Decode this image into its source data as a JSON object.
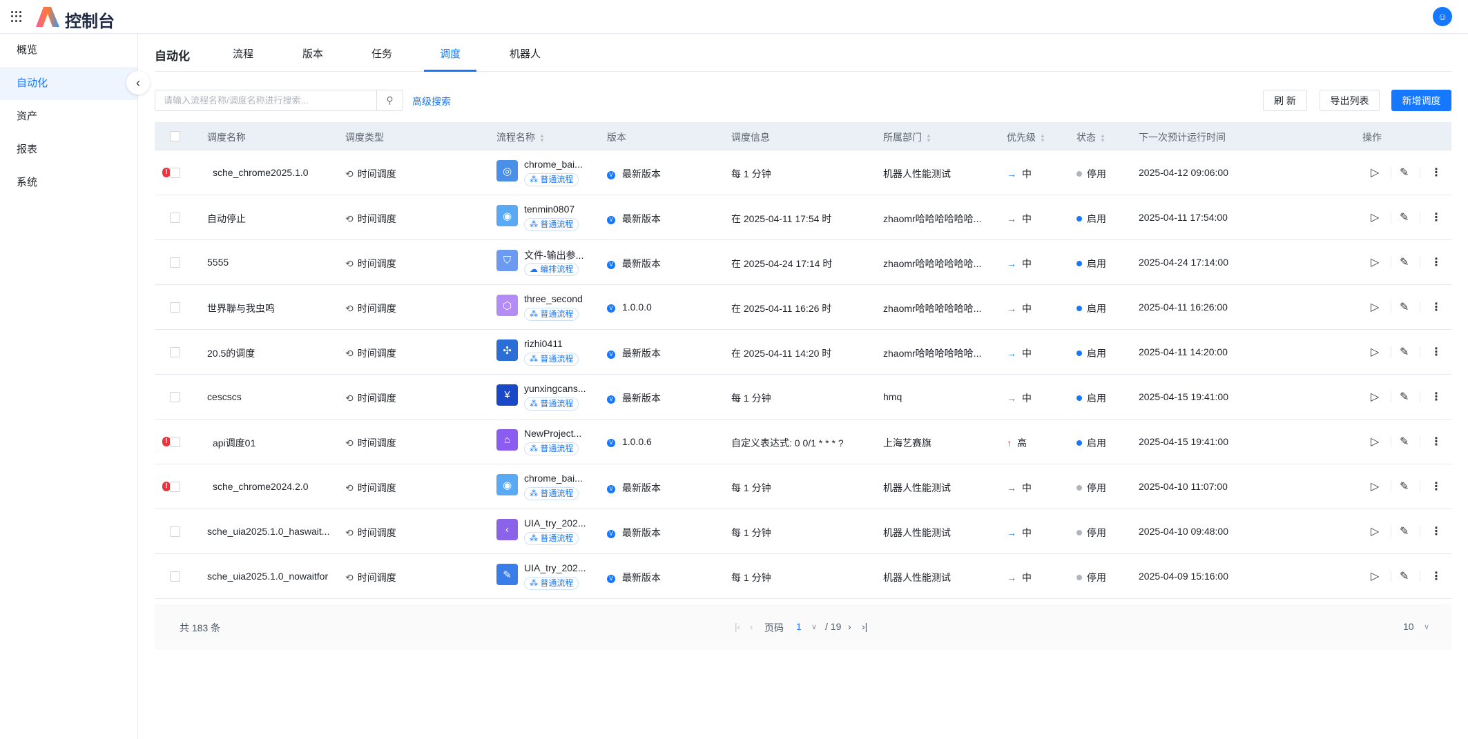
{
  "header": {
    "brand": "控制台",
    "avatar_icon": "robot-avatar-icon"
  },
  "sidebar": {
    "items": [
      {
        "label": "概览"
      },
      {
        "label": "自动化",
        "active": true
      },
      {
        "label": "资产"
      },
      {
        "label": "报表"
      },
      {
        "label": "系统"
      }
    ]
  },
  "tabs": {
    "title": "自动化",
    "items": [
      "流程",
      "版本",
      "任务",
      "调度",
      "机器人"
    ],
    "active": "调度"
  },
  "toolbar": {
    "search_placeholder": "请输入流程名称/调度名称进行搜索...",
    "search_value": "",
    "advanced": "高级搜索",
    "refresh": "刷 新",
    "export": "导出列表",
    "add": "新增调度"
  },
  "colors": {
    "accent": "#1677ff",
    "error": "#f0323c",
    "disabled": "#b0b4bb"
  },
  "table": {
    "headers": [
      "调度名称",
      "调度类型",
      "流程名称",
      "版本",
      "调度信息",
      "所属部门",
      "优先级",
      "状态",
      "下一次预计运行时间",
      "操作"
    ],
    "rows": [
      {
        "warn": true,
        "name": "sche_chrome2025.1.0",
        "type": "时间调度",
        "flow": "chrome_bai...",
        "flow_type": "普通流程",
        "icon_color": "#4a8fe8",
        "version": "最新版本",
        "info": "每 1 分钟",
        "dept": "机器人性能测试",
        "priority": "中",
        "status": "停用",
        "next": "2025-04-12 09:06:00"
      },
      {
        "warn": false,
        "name": "自动停止",
        "type": "时间调度",
        "flow": "tenmin0807",
        "flow_type": "普通流程",
        "icon_color": "#5aa9f5",
        "version": "最新版本",
        "info": "在 2025-04-11 17:54 时",
        "dept": "zhaomr哈哈哈哈哈哈...",
        "priority": "中",
        "status": "启用",
        "next": "2025-04-11 17:54:00"
      },
      {
        "warn": false,
        "name": "5555",
        "type": "时间调度",
        "flow": "文件-输出参...",
        "flow_type": "编排流程",
        "icon_color": "#6b9af0",
        "version": "最新版本",
        "info": "在 2025-04-24 17:14 时",
        "dept": "zhaomr哈哈哈哈哈哈...",
        "priority": "中",
        "status": "启用",
        "next": "2025-04-24 17:14:00"
      },
      {
        "warn": false,
        "name": "世界聯与我虫鸣",
        "type": "时间调度",
        "flow": "three_second",
        "flow_type": "普通流程",
        "icon_color": "#b48cf5",
        "version": "1.0.0.0",
        "info": "在 2025-04-11 16:26 时",
        "dept": "zhaomr哈哈哈哈哈哈...",
        "priority": "中",
        "status": "启用",
        "next": "2025-04-11 16:26:00"
      },
      {
        "warn": false,
        "name": "20.5的调度",
        "type": "时间调度",
        "flow": "rizhi0411",
        "flow_type": "普通流程",
        "icon_color": "#2b6fd6",
        "version": "最新版本",
        "info": "在 2025-04-11 14:20 时",
        "dept": "zhaomr哈哈哈哈哈哈...",
        "priority": "中",
        "status": "启用",
        "next": "2025-04-11 14:20:00"
      },
      {
        "warn": false,
        "name": "cescscs",
        "type": "时间调度",
        "flow": "yunxingcans...",
        "flow_type": "普通流程",
        "icon_color": "#1848c8",
        "version": "最新版本",
        "info": "每 1 分钟",
        "dept": "hmq",
        "priority": "中",
        "status": "启用",
        "next": "2025-04-15 19:41:00"
      },
      {
        "warn": true,
        "name": "api调度01",
        "type": "时间调度",
        "flow": "NewProject...",
        "flow_type": "普通流程",
        "icon_color": "#8b5cf0",
        "version": "1.0.0.6",
        "info": "自定义表达式:  0 0/1 * * * ?",
        "dept": "上海艺赛旗",
        "priority": "高",
        "status": "启用",
        "next": "2025-04-15 19:41:00"
      },
      {
        "warn": true,
        "name": "sche_chrome2024.2.0",
        "type": "时间调度",
        "flow": "chrome_bai...",
        "flow_type": "普通流程",
        "icon_color": "#5aa9f5",
        "version": "最新版本",
        "info": "每 1 分钟",
        "dept": "机器人性能测试",
        "priority": "中",
        "status": "停用",
        "next": "2025-04-10 11:07:00"
      },
      {
        "warn": false,
        "name": "sche_uia2025.1.0_haswait...",
        "type": "时间调度",
        "flow": "UIA_try_202...",
        "flow_type": "普通流程",
        "icon_color": "#8a63e8",
        "version": "最新版本",
        "info": "每 1 分钟",
        "dept": "机器人性能测试",
        "priority": "中",
        "status": "停用",
        "next": "2025-04-10 09:48:00"
      },
      {
        "warn": false,
        "name": "sche_uia2025.1.0_nowaitfor",
        "type": "时间调度",
        "flow": "UIA_try_202...",
        "flow_type": "普通流程",
        "icon_color": "#3b7de8",
        "version": "最新版本",
        "info": "每 1 分钟",
        "dept": "机器人性能测试",
        "priority": "中",
        "status": "停用",
        "next": "2025-04-09 15:16:00"
      }
    ]
  },
  "pagination": {
    "total": "共 183 条",
    "page_label": "页码",
    "page": "1",
    "pages": "/ 19",
    "page_size": "10"
  }
}
